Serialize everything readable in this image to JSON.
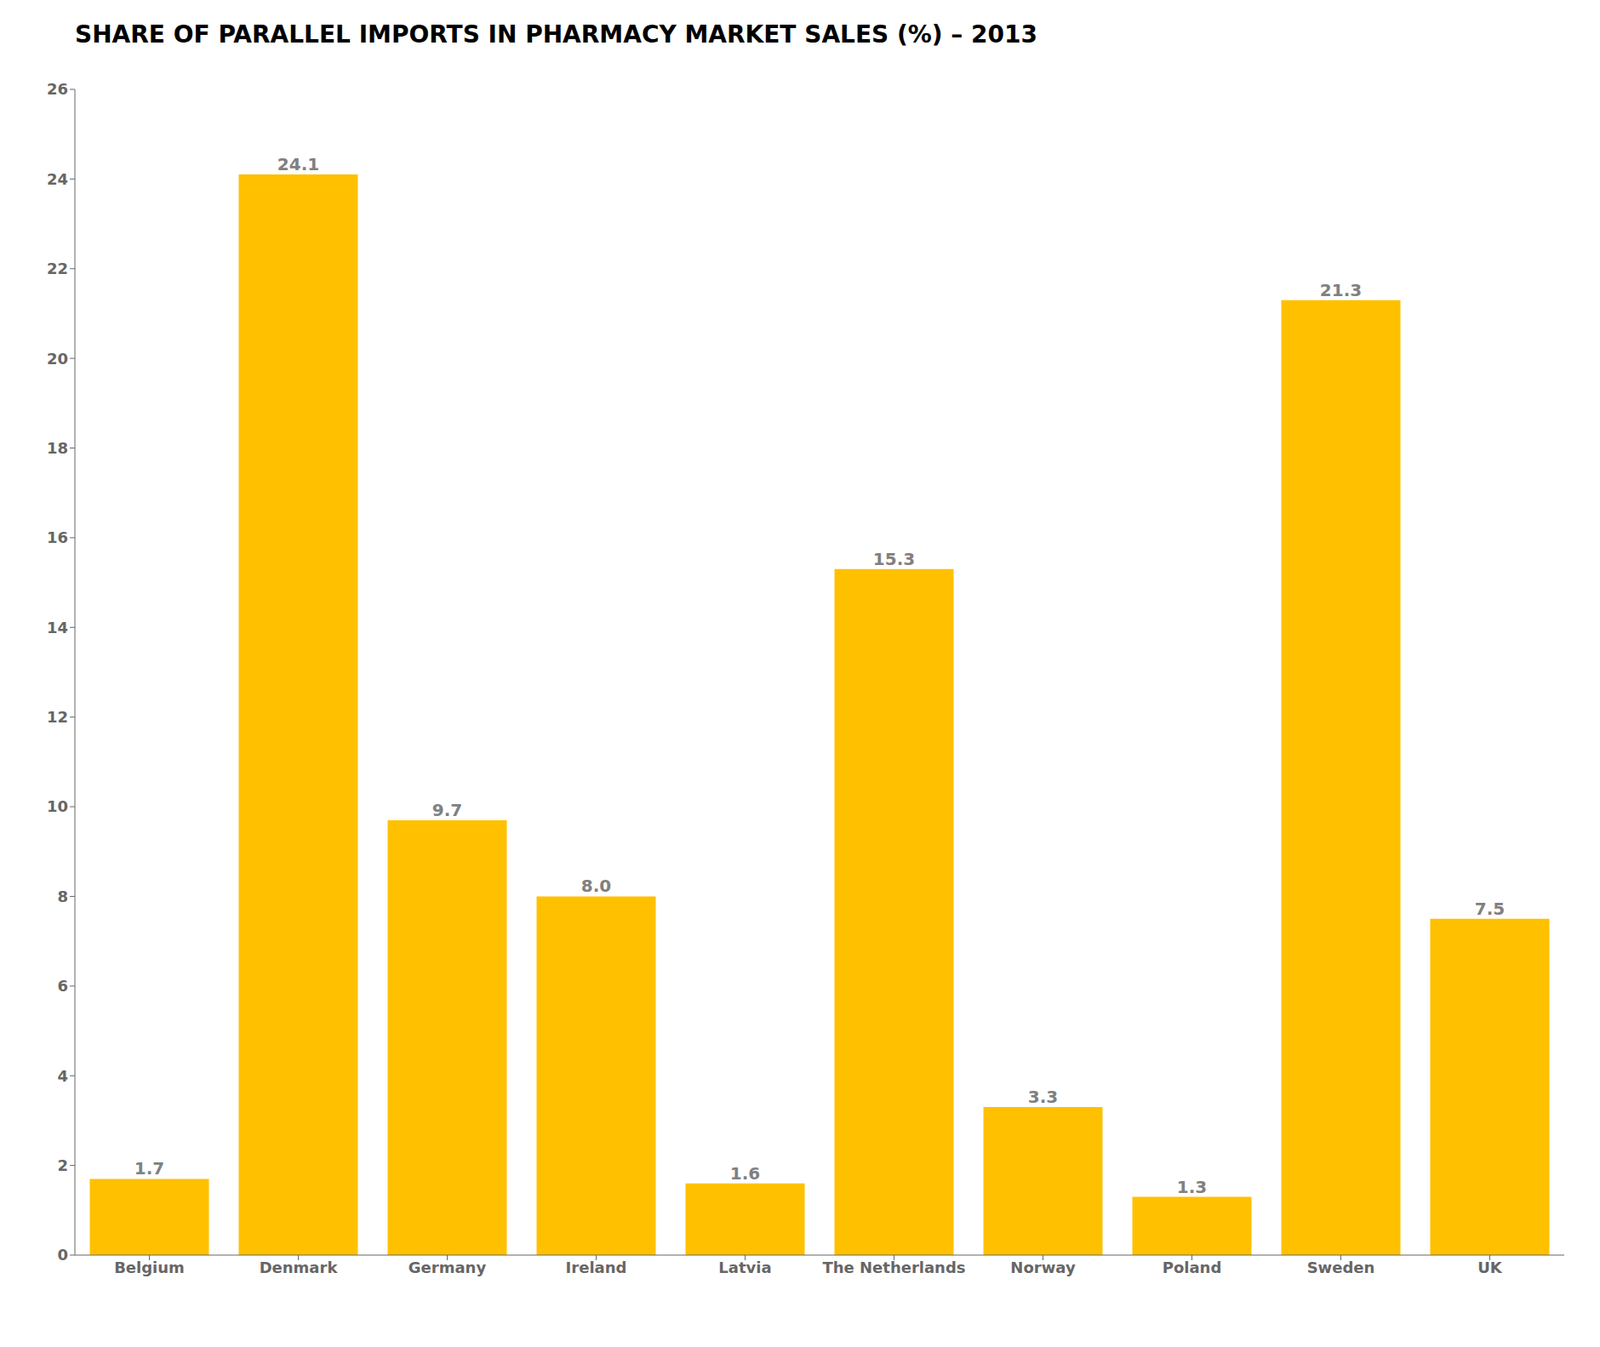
{
  "chart_data": {
    "type": "bar",
    "title": "SHARE OF PARALLEL IMPORTS IN PHARMACY MARKET SALES (%) – 2013",
    "categories": [
      "Belgium",
      "Denmark",
      "Germany",
      "Ireland",
      "Latvia",
      "The Netherlands",
      "Norway",
      "Poland",
      "Sweden",
      "UK"
    ],
    "values": [
      1.7,
      24.1,
      9.7,
      8.0,
      1.6,
      15.3,
      3.3,
      1.3,
      21.3,
      7.5
    ],
    "value_labels": [
      "1.7",
      "24.1",
      "9.7",
      "8.0",
      "1.6",
      "15.3",
      "3.3",
      "1.3",
      "21.3",
      "7.5"
    ],
    "color": "#FFC000",
    "ylim": [
      0,
      26
    ],
    "yticks": [
      0,
      2,
      4,
      6,
      8,
      10,
      12,
      14,
      16,
      18,
      20,
      22,
      24,
      26
    ],
    "grid": false,
    "data_labels": true
  }
}
